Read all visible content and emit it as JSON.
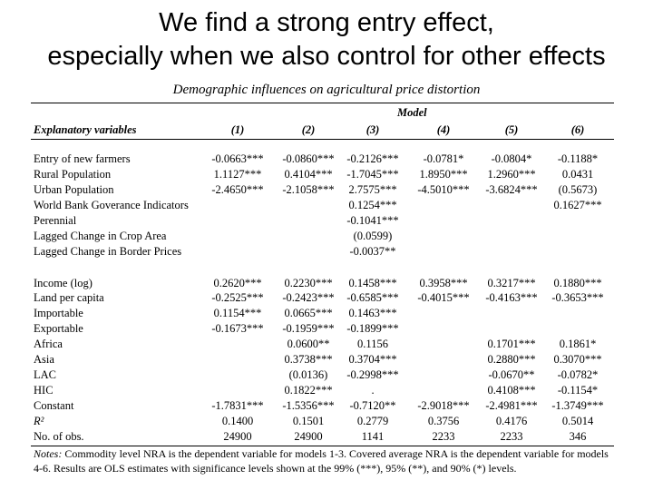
{
  "slide": {
    "title_line1": "We find a strong entry effect,",
    "title_line2": "especially when we also control for other effects"
  },
  "table": {
    "caption": "Demographic influences on agricultural price distortion",
    "model_header": "Model",
    "explanatory_header": "Explanatory variables",
    "columns": [
      "(1)",
      "(2)",
      "(3)",
      "(4)",
      "(5)",
      "(6)"
    ],
    "rows": [
      {
        "label": "Entry of new farmers",
        "cells": [
          "-0.0663***",
          "-0.0860***",
          "-0.2126***",
          "-0.0781*",
          "-0.0804*",
          "-0.1188*"
        ]
      },
      {
        "label": "Rural Population",
        "cells": [
          "1.1127***",
          "0.4104***",
          "-1.7045***",
          "1.8950***",
          "1.2960***",
          "0.0431"
        ]
      },
      {
        "label": "Urban Population",
        "cells": [
          "-2.4650***",
          "-2.1058***",
          "2.7575***",
          "-4.5010***",
          "-3.6824***",
          "(0.5673)"
        ]
      },
      {
        "label": "World Bank Goverance Indicators",
        "cells": [
          "",
          "",
          "0.1254***",
          "",
          "",
          "0.1627***"
        ]
      },
      {
        "label": "Perennial",
        "cells": [
          "",
          "",
          "-0.1041***",
          "",
          "",
          ""
        ]
      },
      {
        "label": "Lagged Change in Crop Area",
        "cells": [
          "",
          "",
          "(0.0599)",
          "",
          "",
          ""
        ]
      },
      {
        "label": "Lagged Change in Border Prices",
        "cells": [
          "",
          "",
          "-0.0037**",
          "",
          "",
          ""
        ]
      },
      {
        "label": "Income (log)",
        "cells": [
          "0.2620***",
          "0.2230***",
          "0.1458***",
          "0.3958***",
          "0.3217***",
          "0.1880***"
        ]
      },
      {
        "label": "Land per capita",
        "cells": [
          "-0.2525***",
          "-0.2423***",
          "-0.6585***",
          "-0.4015***",
          "-0.4163***",
          "-0.3653***"
        ]
      },
      {
        "label": "Importable",
        "cells": [
          "0.1154***",
          "0.0665***",
          "0.1463***",
          "",
          "",
          ""
        ]
      },
      {
        "label": "Exportable",
        "cells": [
          "-0.1673***",
          "-0.1959***",
          "-0.1899***",
          "",
          "",
          ""
        ]
      },
      {
        "label": "Africa",
        "cells": [
          "",
          "0.0600**",
          "0.1156",
          "",
          "0.1701***",
          "0.1861*"
        ]
      },
      {
        "label": "Asia",
        "cells": [
          "",
          "0.3738***",
          "0.3704***",
          "",
          "0.2880***",
          "0.3070***"
        ]
      },
      {
        "label": "LAC",
        "cells": [
          "",
          "(0.0136)",
          "-0.2998***",
          "",
          "-0.0670**",
          "-0.0782*"
        ]
      },
      {
        "label": "HIC",
        "cells": [
          "",
          "0.1822***",
          ".",
          "",
          "0.4108***",
          "-0.1154*"
        ]
      },
      {
        "label": "Constant",
        "cells": [
          "-1.7831***",
          "-1.5356***",
          "-0.7120**",
          "-2.9018***",
          "-2.4981***",
          "-1.3749***"
        ]
      },
      {
        "label": "R²",
        "cells": [
          "0.1400",
          "0.1501",
          "0.2779",
          "0.3756",
          "0.4176",
          "0.5014"
        ]
      },
      {
        "label": "No. of obs.",
        "cells": [
          "24900",
          "24900",
          "1141",
          "2233",
          "2233",
          "346"
        ]
      }
    ],
    "notes_label": "Notes:",
    "notes_text": " Commodity level NRA is the dependent variable for models 1-3. Covered average NRA is the dependent variable for models 4-6. Results are OLS estimates with significance levels shown at the 99% (***), 95% (**), and 90% (*) levels."
  }
}
